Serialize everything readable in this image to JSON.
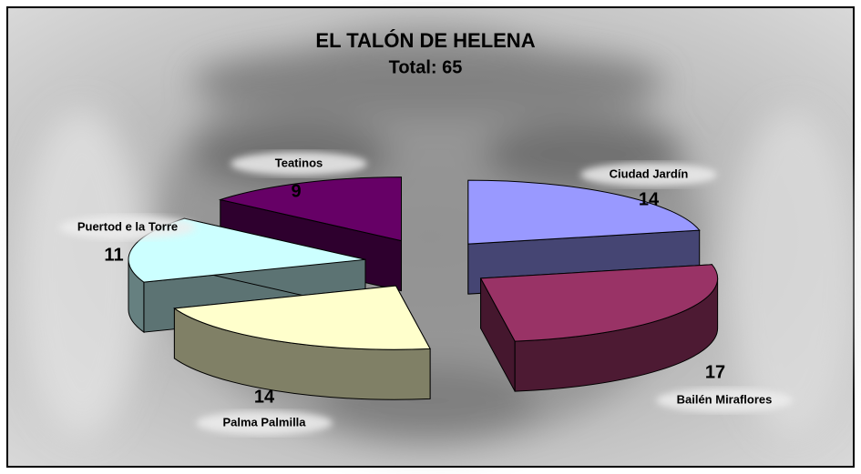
{
  "chart_data": {
    "type": "pie3d",
    "title": "EL TALÓN DE HELENA",
    "subtitle": "Total: 65",
    "categories": [
      "Ciudad Jardín",
      "Bailén Miraflores",
      "Palma Palmilla",
      "Puertod e la Torre",
      "Teatinos"
    ],
    "values": [
      14,
      17,
      14,
      11,
      9
    ],
    "colors": [
      "#9999ff",
      "#993366",
      "#ffffcc",
      "#ccffff",
      "#660066"
    ]
  }
}
